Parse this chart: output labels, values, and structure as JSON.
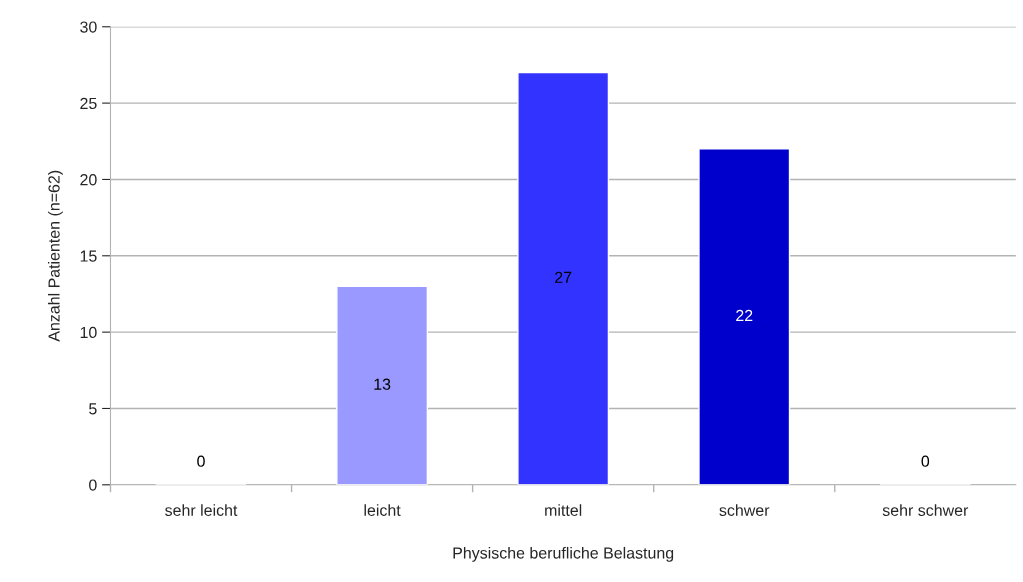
{
  "chart_data": {
    "type": "bar",
    "xlabel": "Physische berufliche Belastung",
    "ylabel": "Anzahl Patienten (n=62)",
    "categories": [
      "sehr leicht",
      "leicht",
      "mittel",
      "schwer",
      "sehr schwer"
    ],
    "values": [
      0,
      13,
      27,
      22,
      0
    ],
    "colors": [
      null,
      "#9999ff",
      "#3333ff",
      "#0000cc",
      null
    ],
    "ylim": [
      0,
      30
    ],
    "yticks": [
      0,
      5,
      10,
      15,
      20,
      25,
      30
    ],
    "grid": "y",
    "data_labels": true,
    "legend": false
  }
}
